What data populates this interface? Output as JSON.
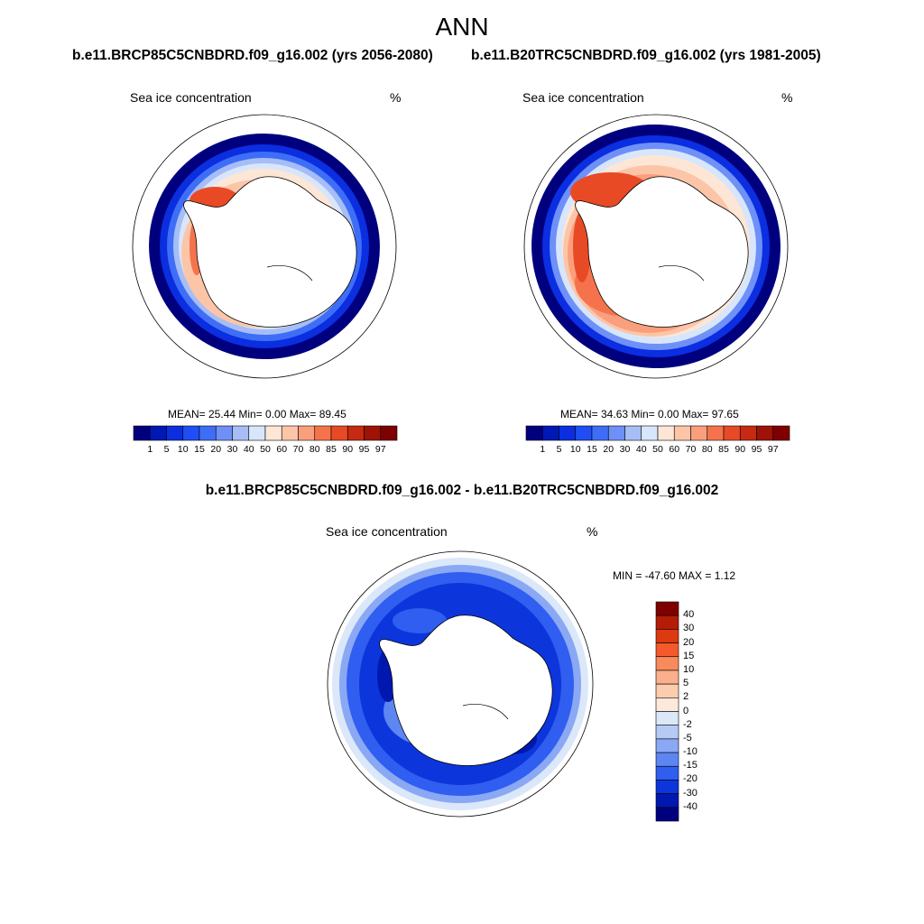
{
  "figure": {
    "season": "ANN",
    "left_panel_title": "b.e11.BRCP85C5CNBDRD.f09_g16.002 (yrs 2056-2080)",
    "right_panel_title": "b.e11.B20TRC5CNBDRD.f09_g16.002 (yrs 1981-2005)",
    "diff_title": "b.e11.BRCP85C5CNBDRD.f09_g16.002 - b.e11.B20TRC5CNBDRD.f09_g16.002"
  },
  "panels": {
    "left": {
      "variable_label": "Sea ice concentration",
      "units": "%",
      "stats_text": "MEAN=  25.44  Min=    0.00  Max=  89.45",
      "mean": 25.44,
      "min": 0.0,
      "max": 89.45
    },
    "right": {
      "variable_label": "Sea ice concentration",
      "units": "%",
      "stats_text": "MEAN=  34.63  Min=    0.00  Max=  97.65",
      "mean": 34.63,
      "min": 0.0,
      "max": 97.65
    },
    "diff": {
      "variable_label": "Sea ice concentration",
      "units": "%",
      "stats_text": "MIN = -47.60 MAX =   1.12",
      "min": -47.6,
      "max": 1.12
    }
  },
  "colorbars": {
    "concentration": {
      "levels": [
        "1",
        "5",
        "10",
        "15",
        "20",
        "30",
        "40",
        "50",
        "60",
        "70",
        "80",
        "85",
        "90",
        "95",
        "97"
      ],
      "colors": [
        "#00007f",
        "#0018b4",
        "#0a2ee0",
        "#1e4ef4",
        "#3f6ef6",
        "#6e90f7",
        "#a7bdf6",
        "#d8e6fb",
        "#fde6d6",
        "#fcc5a8",
        "#fa9f7c",
        "#f5734c",
        "#e84a26",
        "#c52a12",
        "#9e1306",
        "#7f0000"
      ]
    },
    "difference": {
      "levels": [
        "40",
        "30",
        "20",
        "15",
        "10",
        "5",
        "2",
        "0",
        "-2",
        "-5",
        "-10",
        "-15",
        "-20",
        "-30",
        "-40"
      ],
      "colors": [
        "#7f0000",
        "#b41c05",
        "#dc3a10",
        "#f45a2c",
        "#f88a5c",
        "#fab08c",
        "#fcccae",
        "#fde9dc",
        "#dbe8fa",
        "#b5caf5",
        "#8aa8f4",
        "#5e86f3",
        "#2f5ef0",
        "#0c36db",
        "#0018b0",
        "#00007f"
      ]
    }
  }
}
